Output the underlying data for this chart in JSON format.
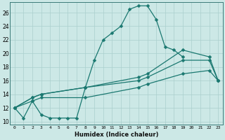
{
  "xlabel": "Humidex (Indice chaleur)",
  "bg_color": "#cce8e6",
  "grid_color": "#aacfcd",
  "line_color": "#1a7870",
  "xlim": [
    -0.5,
    23.5
  ],
  "ylim": [
    9.5,
    27.5
  ],
  "xticks": [
    0,
    1,
    2,
    3,
    4,
    5,
    6,
    7,
    8,
    9,
    10,
    11,
    12,
    13,
    14,
    15,
    16,
    17,
    18,
    19,
    20,
    21,
    22,
    23
  ],
  "yticks": [
    10,
    12,
    14,
    16,
    18,
    20,
    22,
    24,
    26
  ],
  "line1_x": [
    0,
    1,
    2,
    3,
    4,
    5,
    6,
    7,
    8,
    9,
    10,
    11,
    12,
    13,
    14,
    15,
    16,
    17,
    18,
    19
  ],
  "line1_y": [
    12,
    10.5,
    13,
    11,
    10.5,
    10.5,
    10.5,
    10.5,
    15,
    19,
    22,
    23,
    24,
    26.5,
    27,
    27,
    25,
    21,
    20.5,
    19.5
  ],
  "line2_x": [
    0,
    2,
    3,
    8,
    14,
    15,
    19,
    22,
    23
  ],
  "line2_y": [
    12,
    13.5,
    14,
    15,
    16.5,
    17,
    20.5,
    19.5,
    16
  ],
  "line3_x": [
    0,
    2,
    3,
    8,
    14,
    15,
    19,
    22,
    23
  ],
  "line3_y": [
    12,
    13.5,
    14,
    15,
    16,
    16.5,
    19,
    19,
    16
  ],
  "line4_x": [
    0,
    2,
    3,
    8,
    14,
    15,
    19,
    22,
    23
  ],
  "line4_y": [
    12,
    13.0,
    13.5,
    13.5,
    15,
    15.5,
    17,
    17.5,
    16
  ]
}
